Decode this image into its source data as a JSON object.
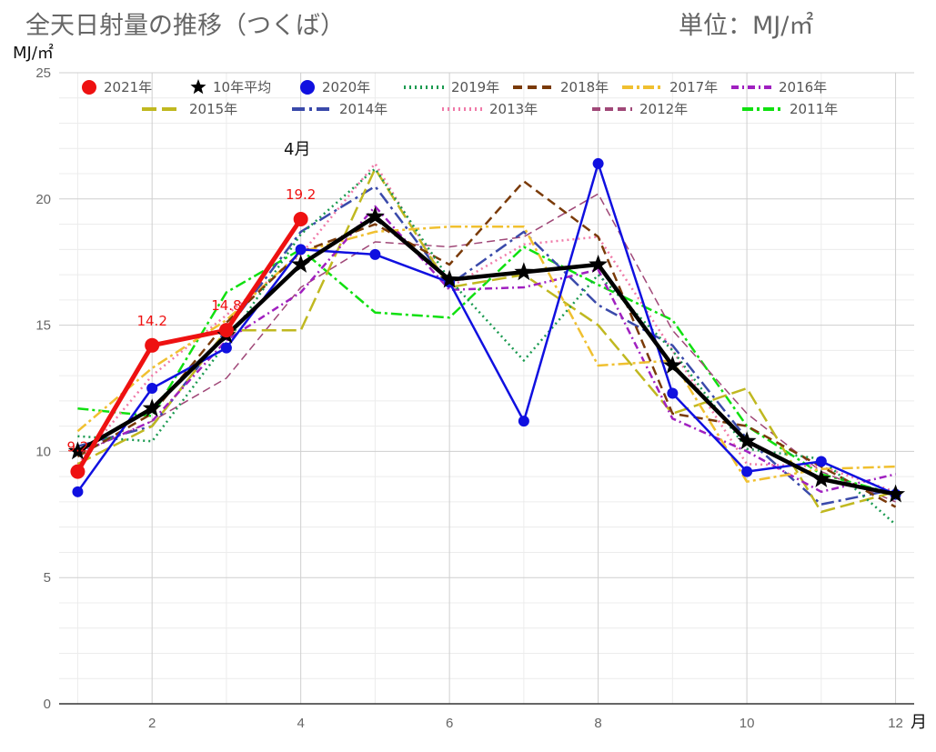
{
  "header": {
    "title": "全天日射量の推移（つくば）",
    "unit": "単位：MJ/㎡"
  },
  "chart_data": {
    "type": "line",
    "title": "全天日射量の推移（つくば）",
    "ylabel": "MJ/㎡",
    "xlabel": "月",
    "xlim": [
      0.75,
      12.25
    ],
    "ylim": [
      0,
      25
    ],
    "xticks": [
      2,
      4,
      6,
      8,
      10,
      12
    ],
    "yticks": [
      0,
      5,
      10,
      15,
      20,
      25
    ],
    "grid": true,
    "legend": "top",
    "annotation": "4月",
    "series": [
      {
        "name": "2021年",
        "color": "#ee1111",
        "width": 5,
        "dash": "",
        "marker": "circle",
        "x": [
          1,
          2,
          3,
          4
        ],
        "values": [
          9.2,
          14.2,
          14.8,
          19.2
        ],
        "labels": [
          "9.2",
          "14.2",
          "14.8",
          "19.2"
        ]
      },
      {
        "name": "10年平均",
        "color": "#000000",
        "width": 4.5,
        "dash": "",
        "marker": "star",
        "x": [
          1,
          2,
          3,
          4,
          5,
          6,
          7,
          8,
          9,
          10,
          11,
          12
        ],
        "values": [
          10.0,
          11.7,
          14.6,
          17.4,
          19.3,
          16.8,
          17.1,
          17.4,
          13.4,
          10.4,
          8.9,
          8.3
        ]
      },
      {
        "name": "2020年",
        "color": "#1010e0",
        "width": 2.5,
        "dash": "",
        "marker": "circle",
        "x": [
          1,
          2,
          3,
          4,
          5,
          6,
          7,
          8,
          9,
          10,
          11,
          12
        ],
        "values": [
          8.4,
          12.5,
          14.1,
          18.0,
          17.8,
          16.7,
          11.2,
          21.4,
          12.3,
          9.2,
          9.6,
          8.3
        ]
      },
      {
        "name": "2019年",
        "color": "#1a9a50",
        "width": 2.5,
        "dash": "2,4",
        "marker": "",
        "x": [
          1,
          2,
          3,
          4,
          5,
          6,
          7,
          8,
          9,
          10,
          11,
          12
        ],
        "values": [
          10.6,
          10.4,
          14.3,
          18.6,
          21.2,
          16.8,
          13.6,
          17.0,
          14.0,
          10.1,
          9.7,
          7.1
        ]
      },
      {
        "name": "2018年",
        "color": "#7a3a08",
        "width": 2.5,
        "dash": "10,6",
        "marker": "",
        "x": [
          1,
          2,
          3,
          4,
          5,
          6,
          7,
          8,
          9,
          10,
          11,
          12
        ],
        "values": [
          9.8,
          11.5,
          15.1,
          17.9,
          19.0,
          17.4,
          20.7,
          18.5,
          11.5,
          11.0,
          9.4,
          7.8
        ]
      },
      {
        "name": "2017年",
        "color": "#f0c030",
        "width": 2.5,
        "dash": "12,4,3,4",
        "marker": "",
        "x": [
          1,
          2,
          3,
          4,
          5,
          6,
          7,
          8,
          9,
          10,
          11,
          12
        ],
        "values": [
          10.8,
          13.3,
          15.2,
          17.9,
          18.7,
          18.9,
          18.9,
          13.4,
          13.6,
          8.8,
          9.3,
          9.4
        ]
      },
      {
        "name": "2016年",
        "color": "#a020c0",
        "width": 2.5,
        "dash": "8,4,2,4",
        "marker": "",
        "x": [
          1,
          2,
          3,
          4,
          5,
          6,
          7,
          8,
          9,
          10,
          11,
          12
        ],
        "values": [
          9.9,
          11.2,
          14.4,
          16.3,
          19.7,
          16.4,
          16.5,
          17.2,
          11.3,
          10.0,
          8.4,
          9.1
        ]
      },
      {
        "name": "2015年",
        "color": "#c0b820",
        "width": 2.5,
        "dash": "16,6",
        "marker": "",
        "x": [
          1,
          2,
          3,
          4,
          5,
          6,
          7,
          8,
          9,
          10,
          11,
          12
        ],
        "values": [
          9.5,
          11.0,
          14.8,
          14.8,
          21.2,
          16.5,
          17.0,
          15.0,
          11.5,
          12.5,
          7.6,
          8.4
        ]
      },
      {
        "name": "2014年",
        "color": "#3a4aaa",
        "width": 2.5,
        "dash": "14,5,3,5",
        "marker": "",
        "x": [
          1,
          2,
          3,
          4,
          5,
          6,
          7,
          8,
          9,
          10,
          11,
          12
        ],
        "values": [
          10.2,
          11.0,
          14.8,
          18.7,
          20.5,
          16.6,
          18.7,
          15.8,
          14.2,
          10.5,
          7.9,
          8.5
        ]
      },
      {
        "name": "2013年",
        "color": "#f07aa8",
        "width": 2.5,
        "dash": "2,4",
        "marker": "",
        "x": [
          1,
          2,
          3,
          4,
          5,
          6,
          7,
          8,
          9,
          10,
          11,
          12
        ],
        "values": [
          9.5,
          13.0,
          15.4,
          17.8,
          21.4,
          16.5,
          18.2,
          18.5,
          14.0,
          9.5,
          9.4,
          8.4
        ]
      },
      {
        "name": "2012年",
        "color": "#a04878",
        "width": 1.5,
        "dash": "9,5",
        "marker": "",
        "x": [
          1,
          2,
          3,
          4,
          5,
          6,
          7,
          8,
          9,
          10,
          11,
          12
        ],
        "values": [
          9.9,
          11.2,
          12.9,
          16.5,
          18.3,
          18.1,
          18.5,
          20.2,
          14.8,
          11.5,
          9.2,
          8.0
        ]
      },
      {
        "name": "2011年",
        "color": "#10e010",
        "width": 2.5,
        "dash": "12,4,3,4",
        "marker": "",
        "x": [
          1,
          2,
          3,
          4,
          5,
          6,
          7,
          8,
          9,
          10,
          11,
          12
        ],
        "values": [
          11.7,
          11.4,
          16.3,
          18.0,
          15.5,
          15.3,
          18.1,
          16.6,
          15.2,
          11.0,
          9.1,
          8.3
        ]
      }
    ]
  }
}
